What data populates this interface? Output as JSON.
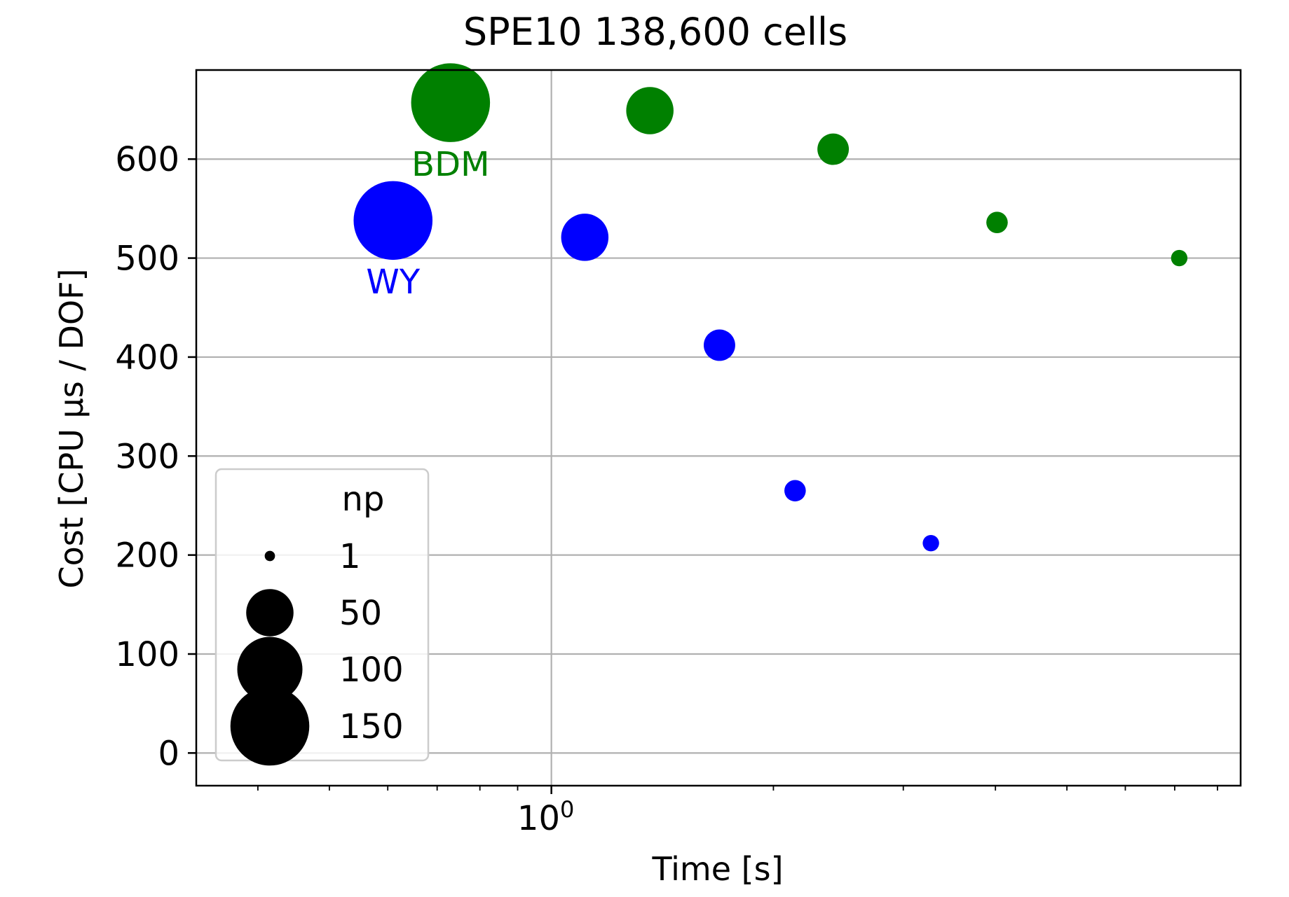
{
  "chart_data": {
    "type": "scatter",
    "title": "SPE10 138,600 cells",
    "xlabel": "Time [s]",
    "ylabel": "Cost [CPU μs / DOF]",
    "xscale": "log",
    "xlim": [
      0.33,
      8.6
    ],
    "ylim": [
      -33,
      690
    ],
    "x_major_ticks": [
      {
        "value": 1,
        "label": "10",
        "exp": "0"
      }
    ],
    "x_minor_ticks": [
      0.4,
      0.5,
      0.6,
      0.7,
      0.8,
      0.9,
      2,
      3,
      4,
      5,
      6,
      7,
      8
    ],
    "y_ticks": [
      0,
      100,
      200,
      300,
      400,
      500,
      600
    ],
    "grid": true,
    "size_variable": "np",
    "series": [
      {
        "name": "WY",
        "color": "#0000ff",
        "label_position": "below",
        "points": [
          {
            "x": 0.61,
            "y": 538,
            "np": 150
          },
          {
            "x": 1.11,
            "y": 521,
            "np": 50
          },
          {
            "x": 1.69,
            "y": 412,
            "np": 20
          },
          {
            "x": 2.14,
            "y": 265,
            "np": 8
          },
          {
            "x": 3.27,
            "y": 212,
            "np": 4
          }
        ]
      },
      {
        "name": "BDM",
        "color": "#008000",
        "label_position": "below",
        "points": [
          {
            "x": 0.73,
            "y": 657,
            "np": 150
          },
          {
            "x": 1.36,
            "y": 649,
            "np": 50
          },
          {
            "x": 2.41,
            "y": 610,
            "np": 20
          },
          {
            "x": 4.02,
            "y": 536,
            "np": 8
          },
          {
            "x": 7.1,
            "y": 500,
            "np": 4
          }
        ]
      }
    ],
    "legend": {
      "title": "np",
      "location": "lower-left",
      "entries": [
        {
          "label": "1",
          "np": 1
        },
        {
          "label": "50",
          "np": 50
        },
        {
          "label": "100",
          "np": 100
        },
        {
          "label": "150",
          "np": 150
        }
      ]
    }
  }
}
